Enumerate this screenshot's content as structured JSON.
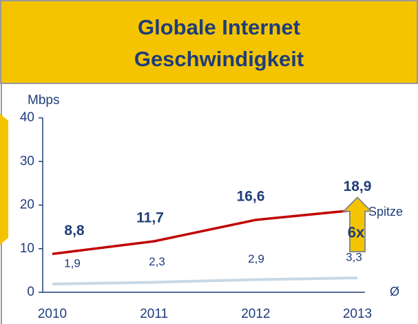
{
  "chart_data": {
    "type": "line",
    "title": [
      "Globale Internet",
      "Geschwindigkeit"
    ],
    "y_label": "Mbps",
    "categories": [
      "2010",
      "2011",
      "2012",
      "2013"
    ],
    "series": [
      {
        "name": "Spitze",
        "color": "#c00000",
        "values": [
          8.8,
          11.7,
          16.6,
          18.9
        ],
        "value_labels": [
          "8,8",
          "11,7",
          "16,6",
          "18,9"
        ]
      },
      {
        "name": "Ø",
        "color": "#c8d8e4",
        "values": [
          1.9,
          2.3,
          2.9,
          3.3
        ],
        "value_labels": [
          "1,9",
          "2,3",
          "2,9",
          "3,3"
        ]
      }
    ],
    "annotation": "6x",
    "ylim": [
      0,
      40
    ],
    "yticks": [
      0,
      10,
      20,
      30,
      40
    ]
  }
}
